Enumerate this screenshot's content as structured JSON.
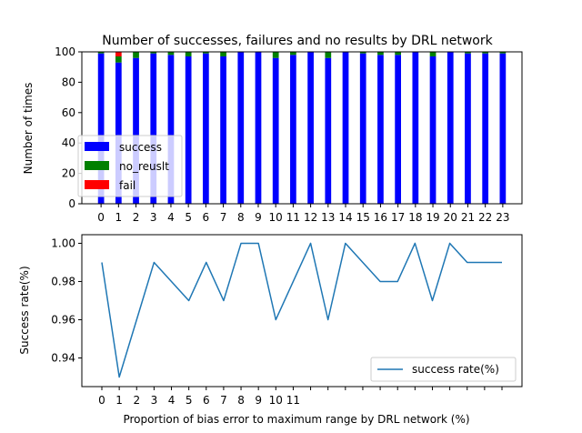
{
  "chart_data": [
    {
      "type": "bar",
      "stacked": true,
      "title": "Number of successes, failures and no results by DRL network",
      "xlabel": "",
      "ylabel": "Number of times",
      "categories": [
        "0",
        "1",
        "2",
        "3",
        "4",
        "5",
        "6",
        "7",
        "8",
        "9",
        "10",
        "11",
        "12",
        "13",
        "14",
        "15",
        "16",
        "17",
        "18",
        "19",
        "20",
        "21",
        "22",
        "23"
      ],
      "ylim": [
        0,
        100
      ],
      "yticks": [
        0,
        20,
        40,
        60,
        80,
        100
      ],
      "legend_position": "lower-left",
      "series": [
        {
          "name": "success",
          "color": "#0000ff",
          "values": [
            99,
            93,
            96,
            99,
            98,
            97,
            99,
            97,
            100,
            100,
            96,
            98,
            100,
            96,
            100,
            99,
            98,
            98,
            100,
            97,
            100,
            99,
            99,
            99
          ]
        },
        {
          "name": "no_reuslt",
          "color": "#008000",
          "values": [
            1,
            4,
            4,
            1,
            2,
            3,
            1,
            3,
            0,
            0,
            4,
            2,
            0,
            4,
            0,
            1,
            2,
            2,
            0,
            3,
            0,
            1,
            1,
            1
          ]
        },
        {
          "name": "fail",
          "color": "#ff0000",
          "values": [
            0,
            3,
            0,
            0,
            0,
            0,
            0,
            0,
            0,
            0,
            0,
            0,
            0,
            0,
            0,
            0,
            0,
            0,
            0,
            0,
            0,
            0,
            0,
            0
          ]
        }
      ]
    },
    {
      "type": "line",
      "title": "",
      "xlabel": "Proportion of bias error to maximum range by DRL network (%)",
      "ylabel": "Success rate(%)",
      "x_tick_labels": [
        "0",
        "1",
        "2",
        "3",
        "4",
        "5",
        "6",
        "7",
        "8",
        "9",
        "10",
        "11"
      ],
      "ylim": [
        0.925,
        1.0045
      ],
      "yticks": [
        "0.94",
        "0.96",
        "0.98",
        "1.00"
      ],
      "ytick_values": [
        0.94,
        0.96,
        0.98,
        1.0
      ],
      "legend_position": "lower-right",
      "series": [
        {
          "name": "success rate(%)",
          "color": "#1f77b4",
          "values": [
            0.99,
            0.93,
            0.96,
            0.99,
            0.98,
            0.97,
            0.99,
            0.97,
            1.0,
            1.0,
            0.96,
            0.98,
            1.0,
            0.96,
            1.0,
            0.99,
            0.98,
            0.98,
            1.0,
            0.97,
            1.0,
            0.99,
            0.99,
            0.99
          ]
        }
      ]
    }
  ]
}
